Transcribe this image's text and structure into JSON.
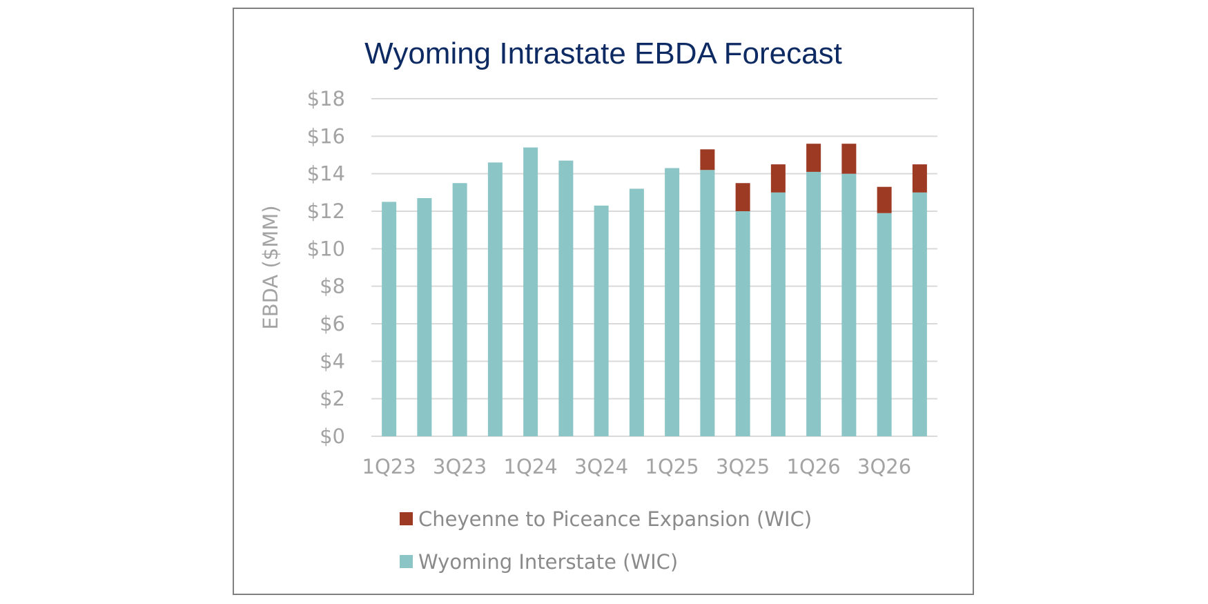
{
  "chart_data": {
    "type": "bar",
    "stacked": true,
    "title": "Wyoming Intrastate EBDA Forecast",
    "ylabel": "EBDA ($MM)",
    "xlabel": "",
    "ylim": [
      0,
      18
    ],
    "y_ticks": [
      "$0",
      "$2",
      "$4",
      "$6",
      "$8",
      "$10",
      "$12",
      "$14",
      "$16",
      "$18"
    ],
    "y_tick_values": [
      0,
      2,
      4,
      6,
      8,
      10,
      12,
      14,
      16,
      18
    ],
    "categories": [
      "1Q23",
      "2Q23",
      "3Q23",
      "4Q23",
      "1Q24",
      "2Q24",
      "3Q24",
      "4Q24",
      "1Q25",
      "2Q25",
      "3Q25",
      "4Q25",
      "1Q26",
      "2Q26",
      "3Q26",
      "4Q26"
    ],
    "x_tick_labels": [
      "1Q23",
      "3Q23",
      "1Q24",
      "3Q24",
      "1Q25",
      "3Q25",
      "1Q26",
      "3Q26"
    ],
    "x_tick_indices": [
      0,
      2,
      4,
      6,
      8,
      10,
      12,
      14
    ],
    "grid": true,
    "legend_position": "bottom",
    "series": [
      {
        "name": "Wyoming Interstate (WIC)",
        "color": "#8cc5c6",
        "values": [
          12.5,
          12.7,
          13.5,
          14.6,
          15.4,
          14.7,
          12.3,
          13.2,
          14.3,
          14.2,
          12.0,
          13.0,
          14.1,
          14.0,
          11.9,
          13.0
        ]
      },
      {
        "name": "Cheyenne to Piceance Expansion (WIC)",
        "color": "#9c3a24",
        "values": [
          0,
          0,
          0,
          0,
          0,
          0,
          0,
          0,
          0,
          1.1,
          1.5,
          1.5,
          1.5,
          1.6,
          1.4,
          1.5
        ]
      }
    ],
    "legend_order": [
      1,
      0
    ]
  }
}
